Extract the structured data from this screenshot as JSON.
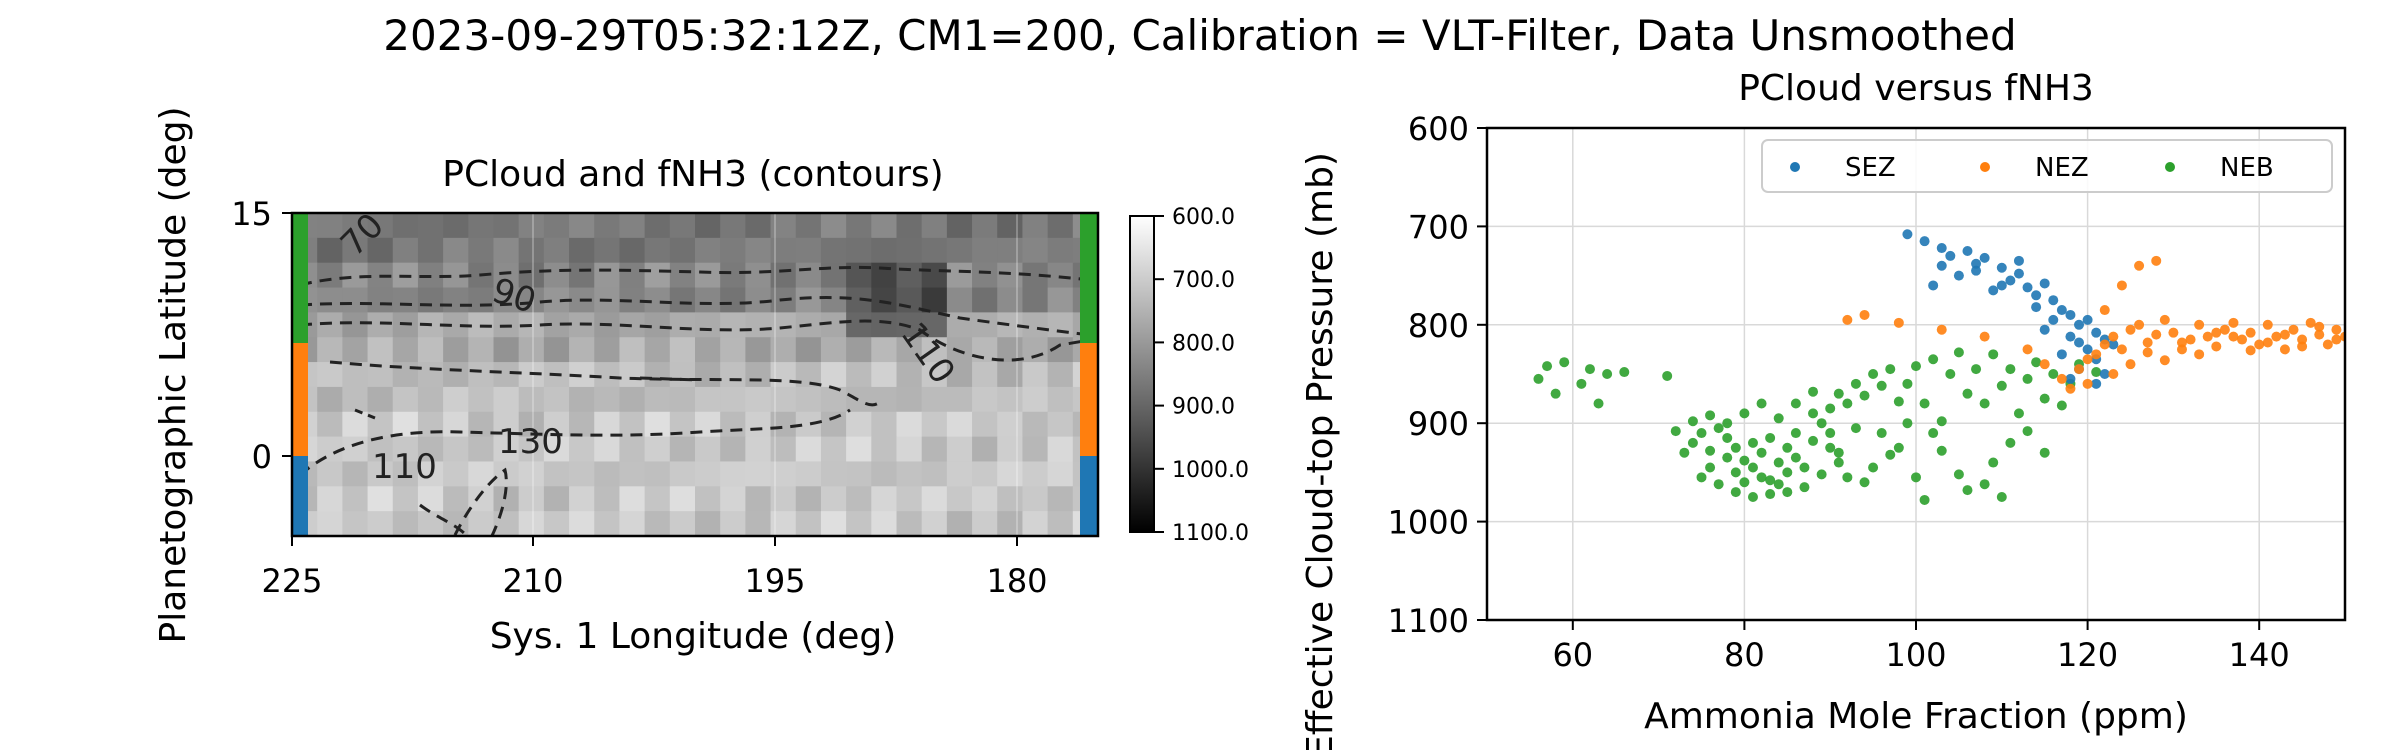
{
  "suptitle": "2023-09-29T05:32:12Z, CM1=200, Calibration = VLT-Filter, Data Unsmoothed",
  "left_panel": {
    "title": "PCloud and fNH3 (contours)",
    "xlabel": "Sys. 1 Longitude (deg)",
    "ylabel": "Planetographic Latitude (deg)",
    "xticks": [
      "225",
      "210",
      "195",
      "180"
    ],
    "yticks": [
      "15",
      "0"
    ],
    "contour_labels": [
      "70",
      "90",
      "110",
      "130",
      "110"
    ],
    "band_colors": [
      "#2ca02c",
      "#ff7f0e",
      "#1f77b4"
    ],
    "colorbar_ticks": [
      "600.0",
      "700.0",
      "800.0",
      "900.0",
      "1000.0",
      "1100.0"
    ]
  },
  "chart_data": {
    "type": "scatter",
    "title": "PCloud versus fNH3",
    "xlabel": "Ammonia Mole Fraction (ppm)",
    "ylabel": "Effective Cloud-top Pressure (mb)",
    "xlim": [
      50,
      150
    ],
    "ylim": [
      1100,
      600
    ],
    "xticks": [
      60,
      80,
      100,
      120,
      140
    ],
    "yticks": [
      600,
      700,
      800,
      900,
      1000,
      1100
    ],
    "grid": true,
    "legend_position": "top-right",
    "series": [
      {
        "name": "SEZ",
        "color": "#1f77b4",
        "points": [
          [
            99,
            708
          ],
          [
            101,
            715
          ],
          [
            103,
            722
          ],
          [
            104,
            730
          ],
          [
            106,
            725
          ],
          [
            107,
            738
          ],
          [
            108,
            732
          ],
          [
            110,
            742
          ],
          [
            111,
            755
          ],
          [
            112,
            748
          ],
          [
            113,
            762
          ],
          [
            114,
            770
          ],
          [
            115,
            758
          ],
          [
            116,
            775
          ],
          [
            117,
            785
          ],
          [
            118,
            790
          ],
          [
            119,
            800
          ],
          [
            120,
            795
          ],
          [
            121,
            808
          ],
          [
            122,
            815
          ],
          [
            120,
            825
          ],
          [
            118,
            812
          ],
          [
            121,
            835
          ],
          [
            119,
            845
          ],
          [
            122,
            850
          ],
          [
            117,
            830
          ],
          [
            115,
            805
          ],
          [
            105,
            750
          ],
          [
            102,
            760
          ],
          [
            109,
            765
          ],
          [
            112,
            735
          ],
          [
            107,
            745
          ],
          [
            116,
            795
          ],
          [
            123,
            820
          ],
          [
            119,
            818
          ],
          [
            114,
            782
          ],
          [
            110,
            760
          ],
          [
            103,
            740
          ],
          [
            121,
            860
          ],
          [
            118,
            855
          ]
        ]
      },
      {
        "name": "NEZ",
        "color": "#ff7f0e",
        "points": [
          [
            92,
            795
          ],
          [
            94,
            790
          ],
          [
            98,
            798
          ],
          [
            103,
            805
          ],
          [
            108,
            812
          ],
          [
            113,
            825
          ],
          [
            115,
            840
          ],
          [
            117,
            855
          ],
          [
            119,
            845
          ],
          [
            120,
            835
          ],
          [
            121,
            830
          ],
          [
            122,
            820
          ],
          [
            123,
            812
          ],
          [
            124,
            825
          ],
          [
            125,
            805
          ],
          [
            126,
            800
          ],
          [
            127,
            818
          ],
          [
            128,
            810
          ],
          [
            129,
            795
          ],
          [
            130,
            808
          ],
          [
            131,
            825
          ],
          [
            132,
            815
          ],
          [
            133,
            800
          ],
          [
            134,
            812
          ],
          [
            135,
            822
          ],
          [
            136,
            805
          ],
          [
            137,
            798
          ],
          [
            138,
            815
          ],
          [
            139,
            808
          ],
          [
            140,
            820
          ],
          [
            141,
            800
          ],
          [
            142,
            812
          ],
          [
            143,
            825
          ],
          [
            144,
            805
          ],
          [
            145,
            815
          ],
          [
            146,
            798
          ],
          [
            147,
            810
          ],
          [
            148,
            820
          ],
          [
            149,
            805
          ],
          [
            150,
            812
          ],
          [
            126,
            740
          ],
          [
            128,
            735
          ],
          [
            124,
            760
          ],
          [
            122,
            785
          ],
          [
            127,
            828
          ],
          [
            131,
            818
          ],
          [
            135,
            808
          ],
          [
            139,
            826
          ],
          [
            143,
            810
          ],
          [
            147,
            802
          ],
          [
            120,
            860
          ],
          [
            118,
            865
          ],
          [
            125,
            840
          ],
          [
            129,
            836
          ],
          [
            133,
            830
          ],
          [
            137,
            812
          ],
          [
            141,
            818
          ],
          [
            145,
            822
          ],
          [
            149,
            815
          ],
          [
            123,
            850
          ]
        ]
      },
      {
        "name": "NEB",
        "color": "#2ca02c",
        "points": [
          [
            56,
            855
          ],
          [
            57,
            842
          ],
          [
            58,
            870
          ],
          [
            59,
            838
          ],
          [
            61,
            860
          ],
          [
            62,
            845
          ],
          [
            63,
            880
          ],
          [
            64,
            850
          ],
          [
            66,
            848
          ],
          [
            71,
            852
          ],
          [
            72,
            908
          ],
          [
            74,
            920
          ],
          [
            75,
            910
          ],
          [
            76,
            928
          ],
          [
            76,
            945
          ],
          [
            77,
            905
          ],
          [
            78,
            935
          ],
          [
            78,
            915
          ],
          [
            79,
            950
          ],
          [
            79,
            925
          ],
          [
            80,
            938
          ],
          [
            80,
            960
          ],
          [
            81,
            920
          ],
          [
            81,
            945
          ],
          [
            82,
            955
          ],
          [
            82,
            930
          ],
          [
            83,
            972
          ],
          [
            83,
            915
          ],
          [
            84,
            940
          ],
          [
            84,
            962
          ],
          [
            85,
            925
          ],
          [
            85,
            950
          ],
          [
            86,
            935
          ],
          [
            86,
            910
          ],
          [
            87,
            945
          ],
          [
            88,
            918
          ],
          [
            88,
            890
          ],
          [
            89,
            900
          ],
          [
            90,
            885
          ],
          [
            90,
            925
          ],
          [
            91,
            870
          ],
          [
            91,
            940
          ],
          [
            92,
            880
          ],
          [
            93,
            860
          ],
          [
            93,
            905
          ],
          [
            94,
            872
          ],
          [
            95,
            850
          ],
          [
            96,
            862
          ],
          [
            96,
            910
          ],
          [
            97,
            845
          ],
          [
            98,
            878
          ],
          [
            98,
            925
          ],
          [
            99,
            860
          ],
          [
            100,
            842
          ],
          [
            101,
            880
          ],
          [
            102,
            835
          ],
          [
            103,
            898
          ],
          [
            104,
            850
          ],
          [
            105,
            828
          ],
          [
            106,
            870
          ],
          [
            107,
            845
          ],
          [
            108,
            880
          ],
          [
            109,
            830
          ],
          [
            110,
            862
          ],
          [
            111,
            845
          ],
          [
            112,
            890
          ],
          [
            113,
            855
          ],
          [
            114,
            838
          ],
          [
            115,
            875
          ],
          [
            116,
            850
          ],
          [
            117,
            882
          ],
          [
            118,
            860
          ],
          [
            106,
            968
          ],
          [
            108,
            962
          ],
          [
            110,
            975
          ],
          [
            100,
            955
          ],
          [
            101,
            978
          ],
          [
            95,
            945
          ],
          [
            94,
            960
          ],
          [
            97,
            932
          ],
          [
            103,
            928
          ],
          [
            105,
            952
          ],
          [
            109,
            940
          ],
          [
            87,
            965
          ],
          [
            89,
            952
          ],
          [
            91,
            930
          ],
          [
            92,
            955
          ],
          [
            88,
            868
          ],
          [
            86,
            880
          ],
          [
            84,
            895
          ],
          [
            82,
            880
          ],
          [
            80,
            890
          ],
          [
            78,
            900
          ],
          [
            76,
            892
          ],
          [
            74,
            898
          ],
          [
            73,
            930
          ],
          [
            75,
            955
          ],
          [
            77,
            962
          ],
          [
            79,
            970
          ],
          [
            81,
            975
          ],
          [
            83,
            958
          ],
          [
            85,
            970
          ],
          [
            90,
            910
          ],
          [
            99,
            900
          ],
          [
            102,
            910
          ],
          [
            111,
            920
          ],
          [
            113,
            908
          ],
          [
            115,
            930
          ],
          [
            119,
            840
          ],
          [
            121,
            848
          ]
        ]
      }
    ]
  }
}
